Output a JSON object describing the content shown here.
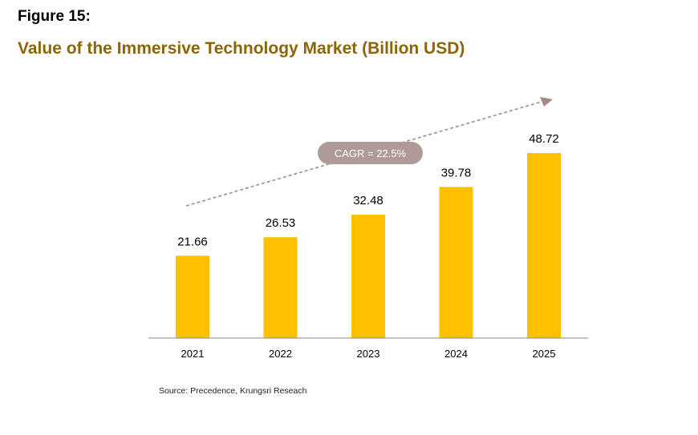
{
  "figure_label": "Figure 15:",
  "title": "Value of the Immersive Technology Market (Billion USD)",
  "source": "Source: Precedence, Krungsri Reseach",
  "colors": {
    "bar": "#FFC000",
    "title": "#8B6508",
    "annotation_bg": "#B09A98",
    "arrow": "#A58A87"
  },
  "chart_data": {
    "type": "bar",
    "categories": [
      "2021",
      "2022",
      "2023",
      "2024",
      "2025"
    ],
    "values": [
      21.66,
      26.53,
      32.48,
      39.78,
      48.72
    ],
    "data_labels": [
      "21.66",
      "26.53",
      "32.48",
      "39.78",
      "48.72"
    ],
    "ylim": [
      0,
      62
    ],
    "grid": false,
    "legend": "none",
    "annotation": "CAGR = 22.5%"
  }
}
